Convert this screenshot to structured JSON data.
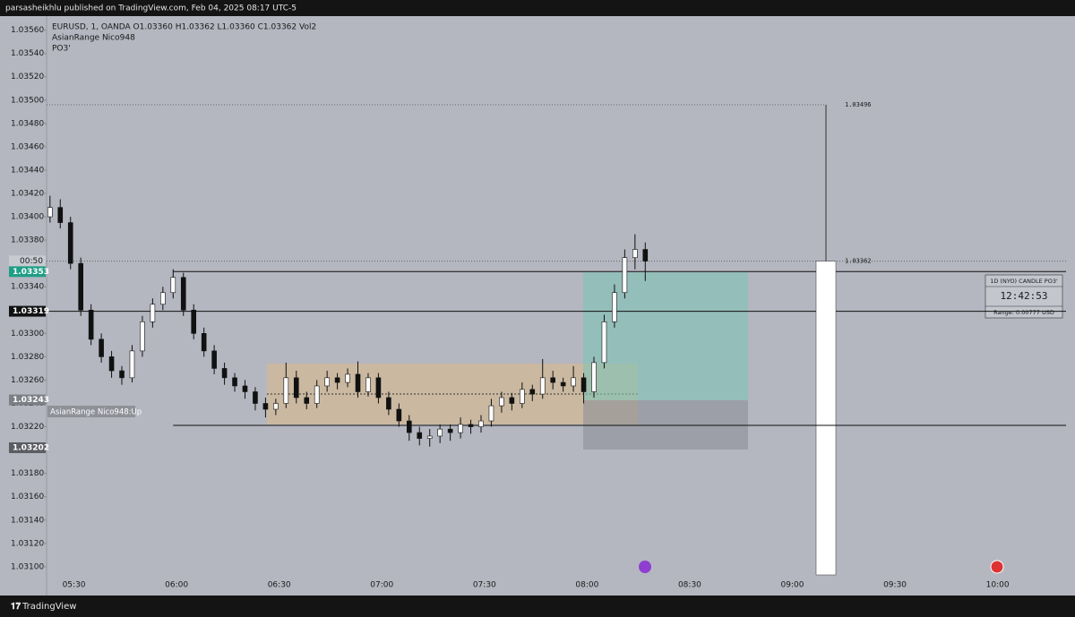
{
  "header": "parsasheikhlu published on TradingView.com, Feb 04, 2025 08:17 UTC-5",
  "footer": "TradingView",
  "chart_data": {
    "type": "candlestick",
    "legend_lines": [
      "EURUSD, 1, OANDA  O1.03360  H1.03362  L1.03360  C1.03362  Vol2",
      "AsianRange Nico948",
      "PO3'"
    ],
    "up_color": "#ffffff",
    "down_color": "#111111",
    "x": [
      "05:23",
      "05:26",
      "05:29",
      "05:32",
      "05:35",
      "05:38",
      "05:41",
      "05:44",
      "05:47",
      "05:50",
      "05:53",
      "05:56",
      "05:59",
      "06:02",
      "06:05",
      "06:08",
      "06:11",
      "06:14",
      "06:17",
      "06:20",
      "06:23",
      "06:26",
      "06:29",
      "06:32",
      "06:35",
      "06:38",
      "06:41",
      "06:44",
      "06:47",
      "06:50",
      "06:53",
      "06:56",
      "06:59",
      "07:02",
      "07:05",
      "07:08",
      "07:11",
      "07:14",
      "07:17",
      "07:20",
      "07:23",
      "07:26",
      "07:29",
      "07:32",
      "07:35",
      "07:38",
      "07:41",
      "07:44",
      "07:47",
      "07:50",
      "07:53",
      "07:56",
      "07:59",
      "08:02",
      "08:05",
      "08:08",
      "08:11",
      "08:14",
      "08:17"
    ],
    "open": [
      1.034,
      1.03408,
      1.03395,
      1.0336,
      1.0332,
      1.03295,
      1.0328,
      1.03268,
      1.03262,
      1.03285,
      1.0331,
      1.03325,
      1.03335,
      1.03348,
      1.0332,
      1.033,
      1.03285,
      1.0327,
      1.03262,
      1.03255,
      1.0325,
      1.0324,
      1.03235,
      1.0324,
      1.03262,
      1.03245,
      1.0324,
      1.03255,
      1.03262,
      1.03258,
      1.03265,
      1.0325,
      1.03262,
      1.03245,
      1.03235,
      1.03225,
      1.03215,
      1.0321,
      1.03212,
      1.03218,
      1.03215,
      1.03222,
      1.0322,
      1.03225,
      1.03238,
      1.03245,
      1.0324,
      1.03252,
      1.03248,
      1.03262,
      1.03258,
      1.03255,
      1.03262,
      1.0325,
      1.03275,
      1.0331,
      1.03335,
      1.03365,
      1.03372
    ],
    "high": [
      1.03418,
      1.03415,
      1.034,
      1.03365,
      1.03325,
      1.033,
      1.03285,
      1.03272,
      1.0329,
      1.03315,
      1.0333,
      1.0334,
      1.03355,
      1.03352,
      1.03325,
      1.03305,
      1.0329,
      1.03275,
      1.03266,
      1.0326,
      1.03254,
      1.03245,
      1.03244,
      1.03275,
      1.03268,
      1.0325,
      1.0326,
      1.03268,
      1.03266,
      1.0327,
      1.03276,
      1.03266,
      1.03266,
      1.0325,
      1.0324,
      1.0323,
      1.0322,
      1.03218,
      1.03222,
      1.03222,
      1.03228,
      1.03226,
      1.0323,
      1.03244,
      1.0325,
      1.03249,
      1.03258,
      1.03256,
      1.03278,
      1.03268,
      1.03262,
      1.03272,
      1.03266,
      1.0328,
      1.03316,
      1.03342,
      1.03372,
      1.03385,
      1.03378
    ],
    "low": [
      1.03395,
      1.0339,
      1.03355,
      1.03315,
      1.0329,
      1.03275,
      1.03262,
      1.03256,
      1.03258,
      1.0328,
      1.03305,
      1.0332,
      1.0333,
      1.03315,
      1.03295,
      1.0328,
      1.03265,
      1.03256,
      1.0325,
      1.03244,
      1.03234,
      1.03228,
      1.0323,
      1.03236,
      1.0324,
      1.03235,
      1.03236,
      1.0325,
      1.03252,
      1.03254,
      1.03245,
      1.03246,
      1.0324,
      1.0323,
      1.0322,
      1.03208,
      1.03204,
      1.03203,
      1.03206,
      1.03208,
      1.0321,
      1.03214,
      1.03215,
      1.0322,
      1.03232,
      1.03234,
      1.03236,
      1.03242,
      1.03244,
      1.03252,
      1.0325,
      1.0325,
      1.0324,
      1.03245,
      1.0327,
      1.03305,
      1.0333,
      1.03355,
      1.03345
    ],
    "close": [
      1.03408,
      1.03395,
      1.0336,
      1.0332,
      1.03295,
      1.0328,
      1.03268,
      1.03262,
      1.03285,
      1.0331,
      1.03325,
      1.03335,
      1.03348,
      1.0332,
      1.033,
      1.03285,
      1.0327,
      1.03262,
      1.03255,
      1.0325,
      1.0324,
      1.03235,
      1.0324,
      1.03262,
      1.03245,
      1.0324,
      1.03255,
      1.03262,
      1.03258,
      1.03265,
      1.0325,
      1.03262,
      1.03245,
      1.03235,
      1.03225,
      1.03215,
      1.0321,
      1.03212,
      1.03218,
      1.03215,
      1.03222,
      1.0322,
      1.03225,
      1.03238,
      1.03245,
      1.0324,
      1.03252,
      1.03248,
      1.03262,
      1.03258,
      1.03255,
      1.03262,
      1.0325,
      1.03275,
      1.0331,
      1.03335,
      1.03365,
      1.03372,
      1.03362
    ],
    "xlim": [
      "05:22",
      "10:20"
    ],
    "xticks": [
      "05:30",
      "06:00",
      "06:30",
      "07:00",
      "07:30",
      "08:00",
      "08:30",
      "09:00",
      "09:30",
      "10:00"
    ],
    "ylim": [
      1.03093,
      1.03572
    ],
    "yticks": [
      {
        "value": 1.031,
        "label": "1.03100"
      },
      {
        "value": 1.0312,
        "label": "1.03120"
      },
      {
        "value": 1.0314,
        "label": "1.03140"
      },
      {
        "value": 1.0316,
        "label": "1.03160"
      },
      {
        "value": 1.0318,
        "label": "1.03180"
      },
      {
        "value": 1.032,
        "label": "1.03200"
      },
      {
        "value": 1.0322,
        "label": "1.03220"
      },
      {
        "value": 1.0324,
        "label": "1.03240"
      },
      {
        "value": 1.0326,
        "label": "1.03260"
      },
      {
        "value": 1.0328,
        "label": "1.03280"
      },
      {
        "value": 1.033,
        "label": "1.03300"
      },
      {
        "value": 1.0332,
        "label": "1.03320"
      },
      {
        "value": 1.0334,
        "label": "1.03340"
      },
      {
        "value": 1.0336,
        "label": "1.03360"
      },
      {
        "value": 1.0338,
        "label": "1.03380"
      },
      {
        "value": 1.034,
        "label": "1.03400"
      },
      {
        "value": 1.0342,
        "label": "1.03420"
      },
      {
        "value": 1.0344,
        "label": "1.03440"
      },
      {
        "value": 1.0346,
        "label": "1.03460"
      },
      {
        "value": 1.0348,
        "label": "1.03480"
      },
      {
        "value": 1.035,
        "label": "1.03500"
      },
      {
        "value": 1.0352,
        "label": "1.03520"
      },
      {
        "value": 1.0354,
        "label": "1.03540"
      },
      {
        "value": 1.0356,
        "label": "1.03560"
      }
    ],
    "grid": false,
    "countdown": "00:50",
    "price_labels": [
      {
        "value": 1.03353,
        "color": "#1e9e86",
        "line": true
      },
      {
        "value": 1.03319,
        "color": "#111111",
        "line": true
      },
      {
        "value": 1.03243,
        "color": "#7d7f86",
        "line": false
      },
      {
        "value": 1.03202,
        "color": "#5b5d63",
        "line": false
      }
    ],
    "markers": [
      {
        "value": 1.03496
      },
      {
        "value": 1.03362
      }
    ],
    "range_label": "AsianRange Nico948:Up",
    "info_box": {
      "title": "1D (NYO) CANDLE PO3'",
      "timer": "12:42:53",
      "range": "Range: 0.00777 USD"
    }
  }
}
